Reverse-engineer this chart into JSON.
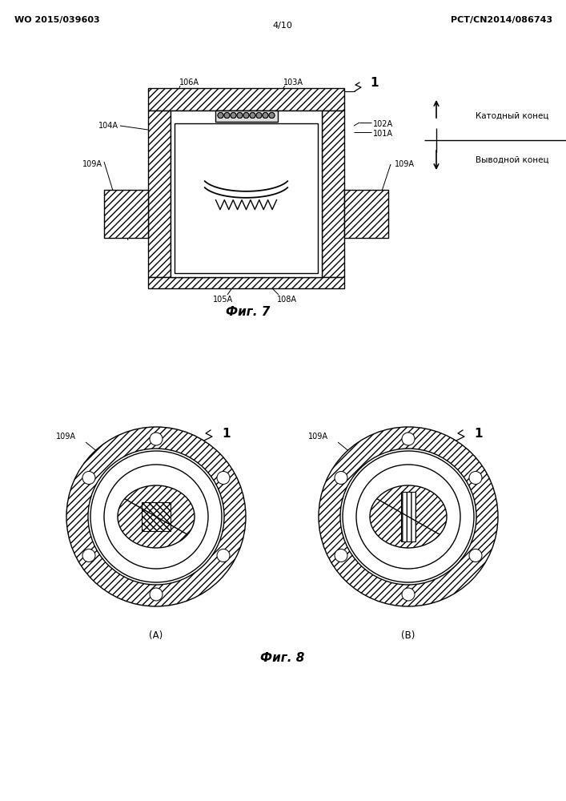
{
  "bg_color": "#ffffff",
  "line_color": "#000000",
  "header_left": "WO 2015/039603",
  "header_right": "PCT/CN2014/086743",
  "header_center": "4/10",
  "fig7_label": "Фиг. 7",
  "fig8_label": "Фиг. 8",
  "cathodic_end": "Катодный конец",
  "output_end": "Выводной конец"
}
